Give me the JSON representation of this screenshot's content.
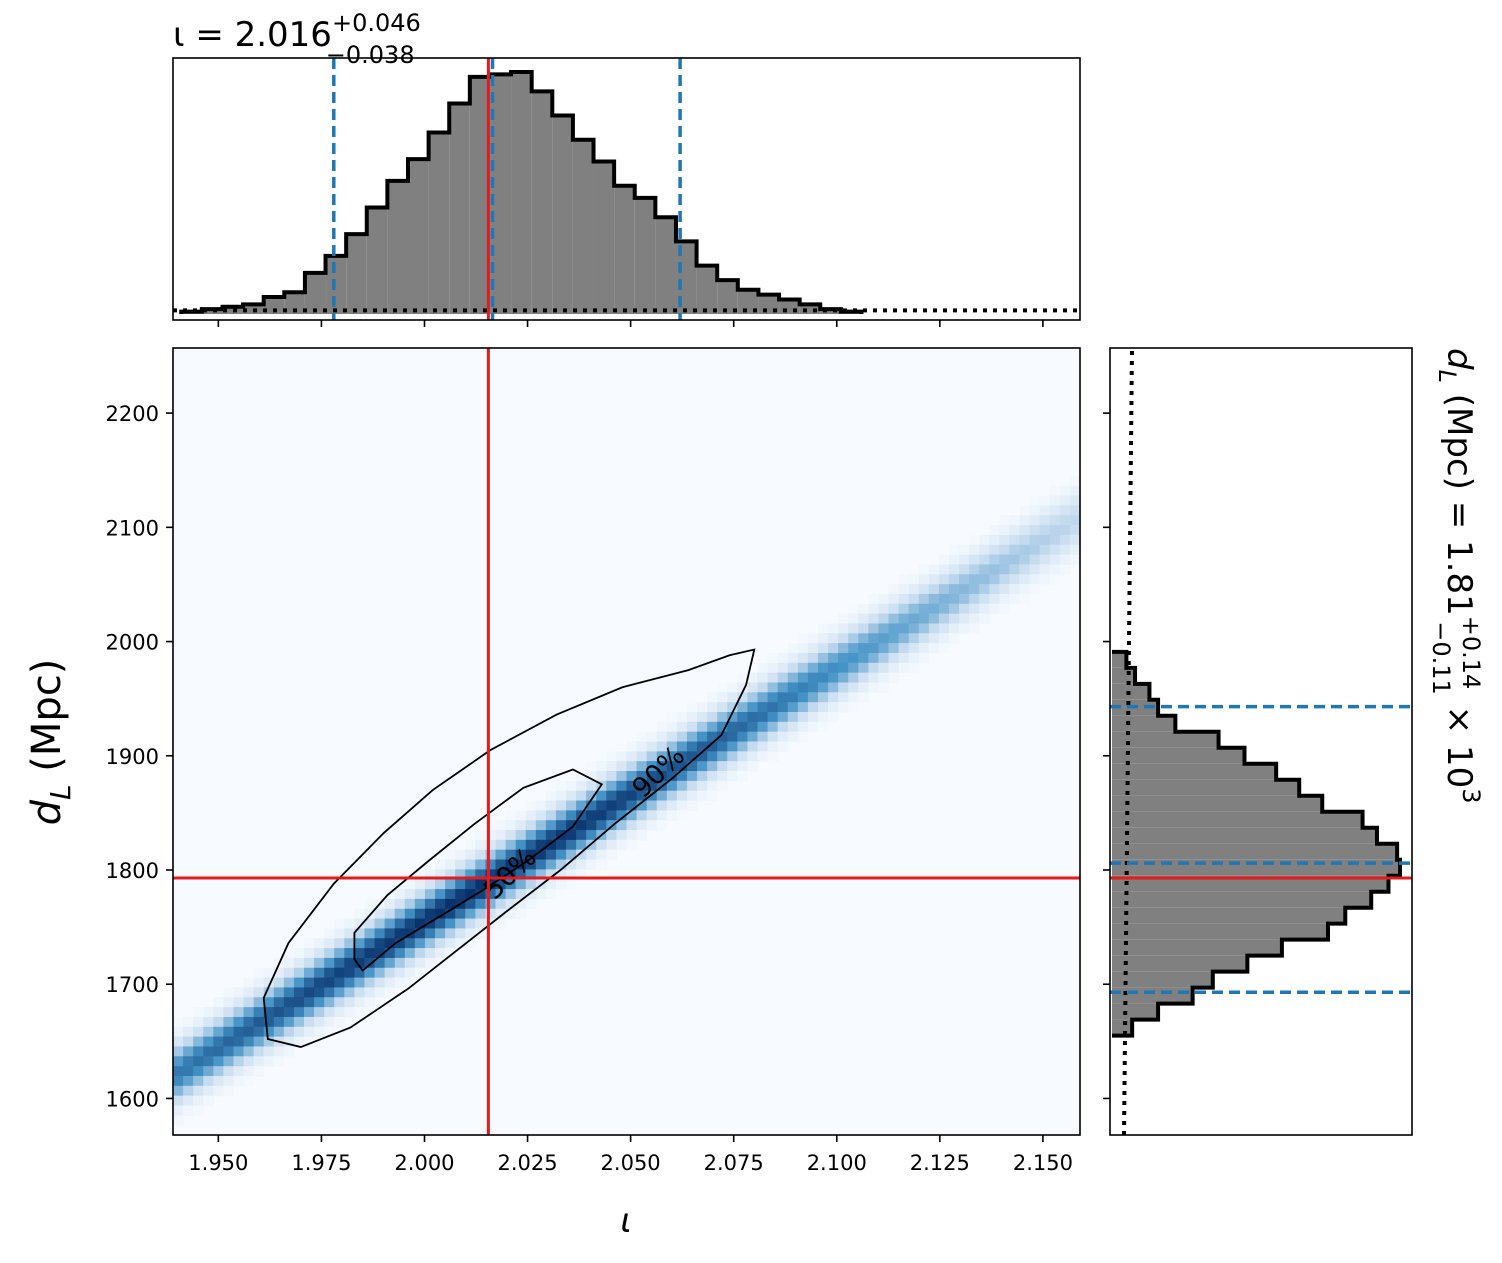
{
  "chart_data": {
    "type": "corner",
    "parameters": {
      "iota": {
        "symbol": "ι",
        "axis_label": "ι",
        "median": 2.016,
        "plus": 0.046,
        "minus": 0.038,
        "title_main": "ι = 2.016",
        "title_sup": "+0.046",
        "title_sub": "−0.038",
        "xlim": [
          1.939,
          2.159
        ],
        "xticks": [
          1.95,
          1.975,
          2.0,
          2.025,
          2.05,
          2.075,
          2.1,
          2.125,
          2.15
        ],
        "xtick_labels": [
          "1.950",
          "1.975",
          "2.000",
          "2.025",
          "2.050",
          "2.075",
          "2.100",
          "2.125",
          "2.150"
        ],
        "quantile_lines": [
          1.978,
          2.0165,
          2.062
        ],
        "truth": 2.0155
      },
      "dL": {
        "axis_label_main": "d",
        "axis_label_sub": "L",
        "axis_label_unit": " (Mpc)",
        "median": 1806,
        "title_main": "d",
        "title_sub_var": "L",
        "title_rest": " (Mpc) = 1.81",
        "title_sup": "+0.14",
        "title_sub": "−0.11",
        "title_times": " × 10",
        "title_exp": "3",
        "ylim": [
          1568,
          2257
        ],
        "yticks": [
          1600,
          1700,
          1800,
          1900,
          2000,
          2100,
          2200
        ],
        "ytick_labels": [
          "1600",
          "1700",
          "1800",
          "1900",
          "2000",
          "2100",
          "2200"
        ],
        "quantile_lines": [
          1693,
          1806,
          1943
        ],
        "truth": 1793
      }
    },
    "iota_histogram": {
      "bin_edges": [
        1.941,
        1.946,
        1.951,
        1.956,
        1.961,
        1.966,
        1.971,
        1.976,
        1.981,
        1.986,
        1.991,
        1.996,
        2.001,
        2.006,
        2.011,
        2.016,
        2.021,
        2.026,
        2.031,
        2.036,
        2.041,
        2.046,
        2.051,
        2.056,
        2.061,
        2.066,
        2.071,
        2.076,
        2.081,
        2.086,
        2.091,
        2.096,
        2.101,
        2.106
      ],
      "counts": [
        0.01,
        0.02,
        0.03,
        0.04,
        0.07,
        0.09,
        0.17,
        0.24,
        0.33,
        0.44,
        0.55,
        0.64,
        0.75,
        0.87,
        0.98,
        0.99,
        1.0,
        0.92,
        0.82,
        0.72,
        0.63,
        0.53,
        0.48,
        0.4,
        0.3,
        0.2,
        0.14,
        0.1,
        0.08,
        0.06,
        0.04,
        0.02,
        0.01
      ],
      "prior_level": 0.015
    },
    "dL_histogram": {
      "bin_edges": [
        1655,
        1669,
        1683,
        1697,
        1711,
        1725,
        1739,
        1753,
        1767,
        1781,
        1795,
        1809,
        1823,
        1837,
        1851,
        1865,
        1879,
        1893,
        1907,
        1921,
        1935,
        1949,
        1963,
        1977,
        1991
      ],
      "counts": [
        0.07,
        0.16,
        0.28,
        0.35,
        0.47,
        0.59,
        0.75,
        0.81,
        0.9,
        0.96,
        1.0,
        0.99,
        0.92,
        0.87,
        0.73,
        0.65,
        0.57,
        0.46,
        0.37,
        0.22,
        0.16,
        0.13,
        0.08,
        0.05
      ],
      "prior_level": 0.05
    },
    "contours": [
      {
        "label": "50%",
        "points": [
          [
            1.985,
            1712
          ],
          [
            1.993,
            1736
          ],
          [
            2.004,
            1760
          ],
          [
            2.014,
            1782
          ],
          [
            2.025,
            1808
          ],
          [
            2.036,
            1838
          ],
          [
            2.043,
            1875
          ],
          [
            2.036,
            1888
          ],
          [
            2.024,
            1872
          ],
          [
            2.012,
            1840
          ],
          [
            2.001,
            1808
          ],
          [
            1.991,
            1778
          ],
          [
            1.983,
            1745
          ],
          [
            1.983,
            1722
          ]
        ]
      },
      {
        "label": "90%",
        "points": [
          [
            1.97,
            1645
          ],
          [
            1.982,
            1662
          ],
          [
            1.996,
            1696
          ],
          [
            2.008,
            1730
          ],
          [
            2.02,
            1764
          ],
          [
            2.033,
            1800
          ],
          [
            2.046,
            1840
          ],
          [
            2.06,
            1880
          ],
          [
            2.072,
            1918
          ],
          [
            2.078,
            1962
          ],
          [
            2.08,
            1993
          ],
          [
            2.074,
            1988
          ],
          [
            2.064,
            1975
          ],
          [
            2.048,
            1960
          ],
          [
            2.032,
            1936
          ],
          [
            2.016,
            1905
          ],
          [
            2.002,
            1870
          ],
          [
            1.99,
            1832
          ],
          [
            1.978,
            1788
          ],
          [
            1.967,
            1736
          ],
          [
            1.961,
            1688
          ],
          [
            1.962,
            1652
          ]
        ]
      }
    ],
    "density": {
      "center": [
        2.014,
        1786
      ],
      "main_direction": [
        0.043,
        96
      ],
      "main_spread": 2.2,
      "minor_spread": 0.0075
    },
    "contour_labels": [
      {
        "text": "50%",
        "at": [
          2.021,
          1796
        ],
        "angle": -44
      },
      {
        "text": "90%",
        "at": [
          2.057,
          1885
        ],
        "angle": -44
      }
    ],
    "colors": {
      "hist_fill": "#808080",
      "hist_edge": "#000000",
      "quantile": "#1f77b4",
      "truth": "#e41a1c",
      "density_low": "#f7fbff",
      "density_high": "#08306b"
    }
  }
}
